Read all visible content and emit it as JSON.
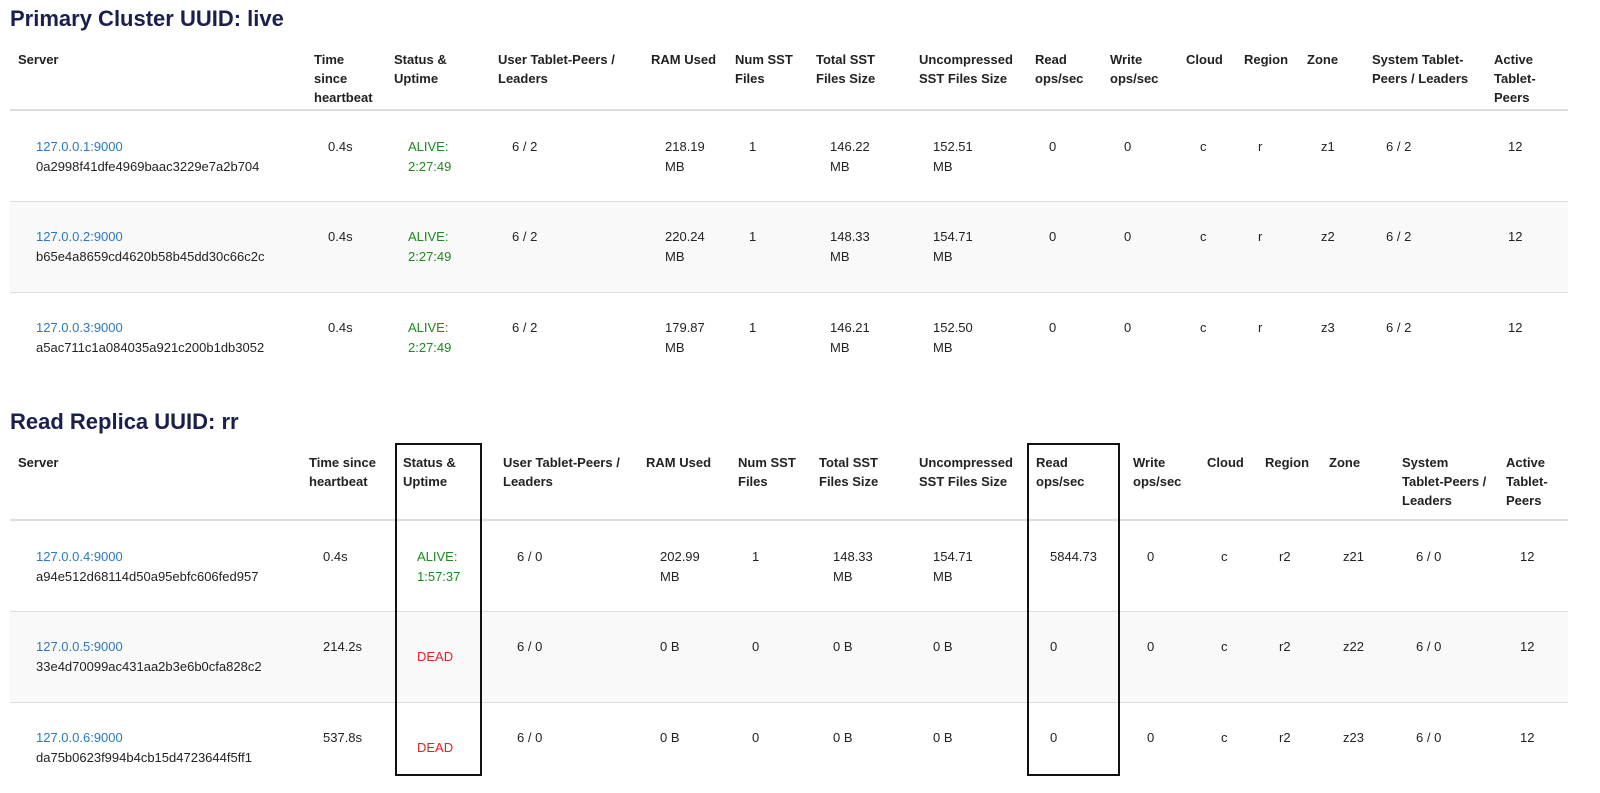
{
  "columns": [
    "Server",
    "Time since heartbeat",
    "Status & Uptime",
    "User Tablet-Peers / Leaders",
    "RAM Used",
    "Num SST Files",
    "Total SST Files Size",
    "Uncompressed SST Files Size",
    "Read ops/sec",
    "Write ops/sec",
    "Cloud",
    "Region",
    "Zone",
    "System Tablet-Peers / Leaders",
    "Active Tablet-Peers"
  ],
  "primary": {
    "title": "Primary Cluster UUID: live",
    "rows": [
      {
        "addr": "127.0.0.1:9000",
        "uuid": "0a2998f41dfe4969baac3229e7a2b704",
        "hb": "0.4s",
        "status": "ALIVE:",
        "uptime": "2:27:49",
        "user": "6 / 2",
        "ram": "218.19 MB",
        "nsst": "1",
        "tsst": "146.22 MB",
        "usst": "152.51 MB",
        "read": "0",
        "write": "0",
        "cloud": "c",
        "region": "r",
        "zone": "z1",
        "sys": "6 / 2",
        "active": "12"
      },
      {
        "addr": "127.0.0.2:9000",
        "uuid": "b65e4a8659cd4620b58b45dd30c66c2c",
        "hb": "0.4s",
        "status": "ALIVE:",
        "uptime": "2:27:49",
        "user": "6 / 2",
        "ram": "220.24 MB",
        "nsst": "1",
        "tsst": "148.33 MB",
        "usst": "154.71 MB",
        "read": "0",
        "write": "0",
        "cloud": "c",
        "region": "r",
        "zone": "z2",
        "sys": "6 / 2",
        "active": "12"
      },
      {
        "addr": "127.0.0.3:9000",
        "uuid": "a5ac711c1a084035a921c200b1db3052",
        "hb": "0.4s",
        "status": "ALIVE:",
        "uptime": "2:27:49",
        "user": "6 / 2",
        "ram": "179.87 MB",
        "nsst": "1",
        "tsst": "146.21 MB",
        "usst": "152.50 MB",
        "read": "0",
        "write": "0",
        "cloud": "c",
        "region": "r",
        "zone": "z3",
        "sys": "6 / 2",
        "active": "12"
      }
    ]
  },
  "replica": {
    "title": "Read Replica UUID: rr",
    "rows": [
      {
        "addr": "127.0.0.4:9000",
        "uuid": "a94e512d68114d50a95ebfc606fed957",
        "hb": "0.4s",
        "status": "ALIVE:",
        "uptime": "1:57:37",
        "user": "6 / 0",
        "ram": "202.99 MB",
        "nsst": "1",
        "tsst": "148.33 MB",
        "usst": "154.71 MB",
        "read": "5844.73",
        "write": "0",
        "cloud": "c",
        "region": "r2",
        "zone": "z21",
        "sys": "6 / 0",
        "active": "12"
      },
      {
        "addr": "127.0.0.5:9000",
        "uuid": "33e4d70099ac431aa2b3e6b0cfa828c2",
        "hb": "214.2s",
        "status": "DEAD",
        "uptime": "",
        "user": "6 / 0",
        "ram": "0 B",
        "nsst": "0",
        "tsst": "0 B",
        "usst": "0 B",
        "read": "0",
        "write": "0",
        "cloud": "c",
        "region": "r2",
        "zone": "z22",
        "sys": "6 / 0",
        "active": "12"
      },
      {
        "addr": "127.0.0.6:9000",
        "uuid": "da75b0623f994b4cb15d4723644f5ff1",
        "hb": "537.8s",
        "status": "DEAD",
        "uptime": "",
        "user": "6 / 0",
        "ram": "0 B",
        "nsst": "0",
        "tsst": "0 B",
        "usst": "0 B",
        "read": "0",
        "write": "0",
        "cloud": "c",
        "region": "r2",
        "zone": "z23",
        "sys": "6 / 0",
        "active": "12"
      }
    ]
  },
  "colors": {
    "alive": "#1c8a1c",
    "dead": "#e52222",
    "link": "#2a7ac0",
    "title": "#1a1f4e"
  }
}
